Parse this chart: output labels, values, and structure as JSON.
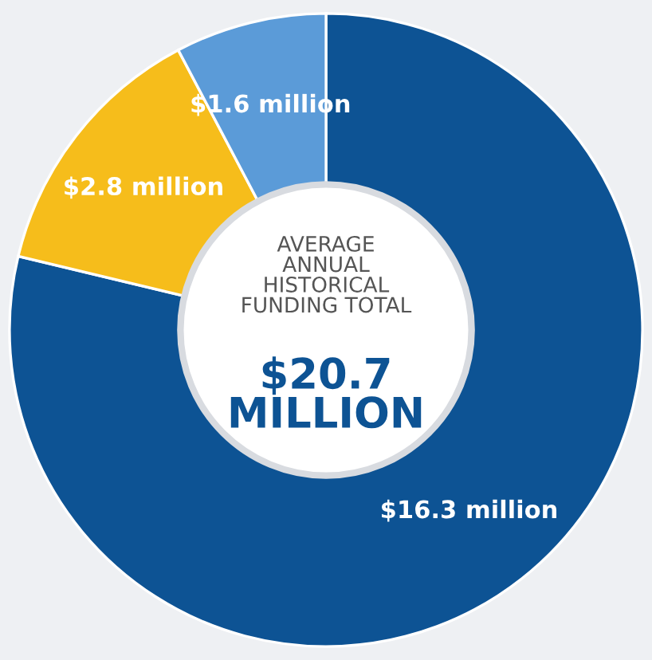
{
  "chart_data": {
    "type": "donut",
    "categories": [
      null,
      null,
      null
    ],
    "values": [
      16.3,
      2.8,
      1.6
    ],
    "colors": [
      "#0d5394",
      "#f6bd1b",
      "#5b9bd8"
    ],
    "value_labels": [
      "$16.3 million",
      "$2.8 million",
      "$1.6 million"
    ],
    "annotations": [
      "AVERAGE\nANNUAL\nHISTORICAL\nFUNDING TOTAL",
      "$20.7\nMILLION"
    ]
  }
}
